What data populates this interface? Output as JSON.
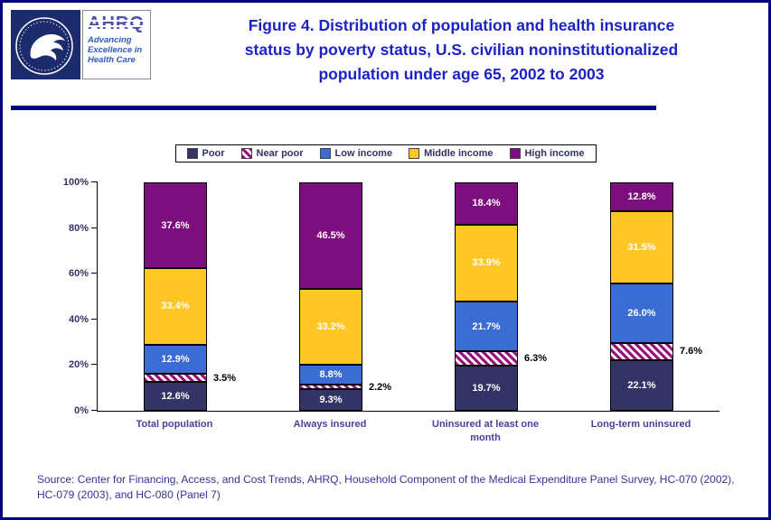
{
  "colors": {
    "border": "#000080",
    "title": "#1C22C4",
    "legend": "#333366",
    "axis": "#333366",
    "cat": "#4A3F99",
    "source": "#333399"
  },
  "header": {
    "ahrq": {
      "acronym": "AHRQ",
      "tagline": "Advancing Excellence in Health Care"
    },
    "title_lines": [
      "Figure 4. Distribution of population and health insurance",
      "status by poverty status, U.S. civilian noninstitutionalized",
      "population under age 65, 2002 to 2003"
    ]
  },
  "chart_data": {
    "type": "stacked-bar",
    "title": "Figure 4. Distribution of population and health insurance status by poverty status, U.S. civilian noninstitutionalized population under age 65, 2002 to 2003",
    "categories": [
      "Total population",
      "Always insured",
      "Uninsured at least one month",
      "Long-term uninsured"
    ],
    "series": [
      {
        "name": "Poor",
        "color": "#333366",
        "pattern": "solid",
        "values": [
          12.6,
          9.3,
          19.7,
          22.1
        ],
        "labels": [
          "12.6%",
          "9.3%",
          "19.7%",
          "22.1%"
        ],
        "label_placement": "inside",
        "label_color": "#FFFFFF"
      },
      {
        "name": "Near poor",
        "color": "#99117D",
        "pattern": "hatch",
        "values": [
          3.5,
          2.2,
          6.3,
          7.6
        ],
        "labels": [
          "3.5%",
          "2.2%",
          "6.3%",
          "7.6%"
        ],
        "label_placement": "outside",
        "label_color": "#000000"
      },
      {
        "name": "Low income",
        "color": "#3B6CD4",
        "pattern": "solid",
        "values": [
          12.9,
          8.8,
          21.7,
          26.0
        ],
        "labels": [
          "12.9%",
          "8.8%",
          "21.7%",
          "26.0%"
        ],
        "label_placement": "inside",
        "label_color": "#FFFFFF"
      },
      {
        "name": "Middle income",
        "color": "#FFC726",
        "pattern": "solid",
        "values": [
          33.4,
          33.2,
          33.9,
          31.5
        ],
        "labels": [
          "33.4%",
          "33.2%",
          "33.9%",
          "31.5%"
        ],
        "label_placement": "inside",
        "label_color": "#FFFFFF"
      },
      {
        "name": "High income",
        "color": "#7D0E7D",
        "pattern": "solid",
        "values": [
          37.6,
          46.5,
          18.4,
          12.8
        ],
        "labels": [
          "37.6%",
          "46.5%",
          "18.4%",
          "12.8%"
        ],
        "label_placement": "inside",
        "label_color": "#FFFFFF"
      }
    ],
    "y_axis": {
      "range": [
        0,
        100
      ],
      "ticks": [
        {
          "label": "0%",
          "value": 0
        },
        {
          "label": "20%",
          "value": 20
        },
        {
          "label": "40%",
          "value": 40
        },
        {
          "label": "60%",
          "value": 60
        },
        {
          "label": "80%",
          "value": 80
        },
        {
          "label": "100%",
          "value": 100
        }
      ]
    },
    "legend_position": "top",
    "gridlines": false
  },
  "source": {
    "text": "Source: Center for Financing, Access, and Cost Trends, AHRQ, Household Component of the Medical Expenditure Panel Survey, HC-070 (2002), HC-079 (2003), and HC-080 (Panel 7)"
  }
}
